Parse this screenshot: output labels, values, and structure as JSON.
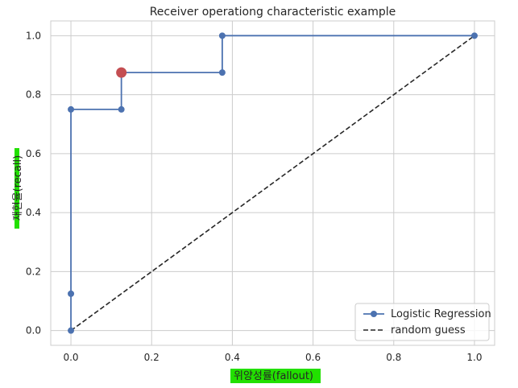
{
  "chart_data": {
    "type": "line",
    "title": "Receiver operationg characteristic example",
    "xlabel": "위양성률(fallout)",
    "ylabel": "재현율(recall)",
    "xlim": [
      -0.05,
      1.05
    ],
    "ylim": [
      -0.05,
      1.05
    ],
    "xticks": [
      0.0,
      0.2,
      0.4,
      0.6,
      0.8,
      1.0
    ],
    "yticks": [
      0.0,
      0.2,
      0.4,
      0.6,
      0.8,
      1.0
    ],
    "xtick_labels": [
      "0.0",
      "0.2",
      "0.4",
      "0.6",
      "0.8",
      "1.0"
    ],
    "ytick_labels": [
      "0.0",
      "0.2",
      "0.4",
      "0.6",
      "0.8",
      "1.0"
    ],
    "grid": true,
    "legend_position": "bottom-right",
    "series": [
      {
        "name": "Logistic Regression",
        "style": "solid-with-markers",
        "color": "#4c72b0",
        "x": [
          0.0,
          0.0,
          0.0,
          0.125,
          0.125,
          0.375,
          0.375,
          1.0
        ],
        "y": [
          0.0,
          0.125,
          0.75,
          0.75,
          0.875,
          0.875,
          1.0,
          1.0
        ]
      },
      {
        "name": "random guess",
        "style": "dashed",
        "color": "#262626",
        "x": [
          0.0,
          1.0
        ],
        "y": [
          0.0,
          1.0
        ]
      }
    ],
    "highlight_point": {
      "x": 0.125,
      "y": 0.875,
      "color": "#c44e52"
    },
    "label_highlight_color": "#22e000"
  }
}
